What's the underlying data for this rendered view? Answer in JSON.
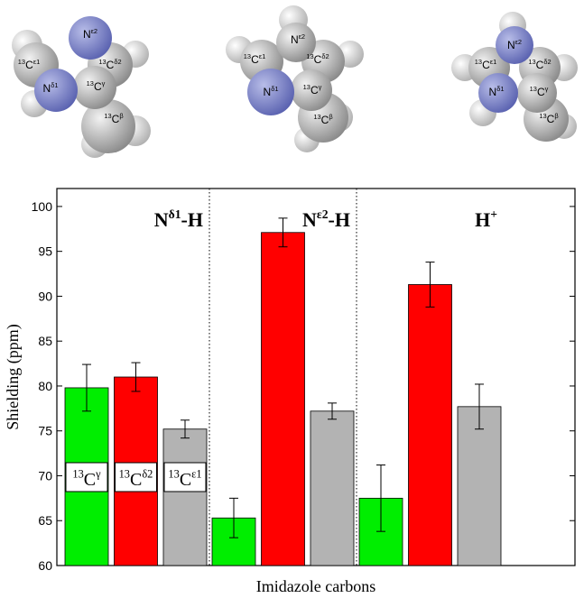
{
  "molecules": [
    {
      "labels": [
        {
          "main": "N",
          "sup": "ε2"
        },
        {
          "pre": "13",
          "main": "C",
          "sup": "ε1"
        },
        {
          "pre": "13",
          "main": "C",
          "sup": "δ2"
        },
        {
          "main": "N",
          "sup": "δ1"
        },
        {
          "pre": "13",
          "main": "C",
          "sup": "γ"
        },
        {
          "pre": "13",
          "main": "C",
          "sup": "β"
        }
      ]
    },
    {
      "labels": [
        {
          "main": "N",
          "sup": "ε2"
        },
        {
          "pre": "13",
          "main": "C",
          "sup": "ε1"
        },
        {
          "pre": "13",
          "main": "C",
          "sup": "δ2"
        },
        {
          "main": "N",
          "sup": "δ1"
        },
        {
          "pre": "13",
          "main": "C",
          "sup": "γ"
        },
        {
          "pre": "13",
          "main": "C",
          "sup": "β"
        }
      ]
    },
    {
      "labels": [
        {
          "main": "N",
          "sup": "ε2"
        },
        {
          "pre": "13",
          "main": "C",
          "sup": "ε1"
        },
        {
          "pre": "13",
          "main": "C",
          "sup": "δ2"
        },
        {
          "main": "N",
          "sup": "δ1"
        },
        {
          "pre": "13",
          "main": "C",
          "sup": "γ"
        },
        {
          "pre": "13",
          "main": "C",
          "sup": "β"
        }
      ]
    }
  ],
  "chart_data": {
    "type": "bar",
    "y_label": "Shielding (ppm)",
    "x_label": "Imidazole carbons",
    "categories": [
      {
        "main": "N",
        "sup": "δ1",
        "tail": "-H"
      },
      {
        "main": "N",
        "sup": "ε2",
        "tail": "-H"
      },
      {
        "main": "H",
        "sup": "+"
      }
    ],
    "series": [
      {
        "name": {
          "pre": "13",
          "main": "C",
          "sup": "γ"
        },
        "color": "#00ee00",
        "values": [
          79.8,
          65.3,
          67.5
        ],
        "errors": [
          2.6,
          2.2,
          3.7
        ]
      },
      {
        "name": {
          "pre": "13",
          "main": "C",
          "sup": "δ2"
        },
        "color": "#ff0000",
        "values": [
          81.0,
          97.1,
          91.3
        ],
        "errors": [
          1.6,
          1.6,
          2.5
        ]
      },
      {
        "name": {
          "pre": "13",
          "main": "C",
          "sup": "ε1"
        },
        "color": "#b3b3b3",
        "values": [
          75.2,
          77.2,
          77.7
        ],
        "errors": [
          1.0,
          0.9,
          2.5
        ]
      }
    ],
    "ylim": [
      60,
      102
    ],
    "yticks": [
      60,
      65,
      70,
      75,
      80,
      85,
      90,
      95,
      100
    ]
  }
}
